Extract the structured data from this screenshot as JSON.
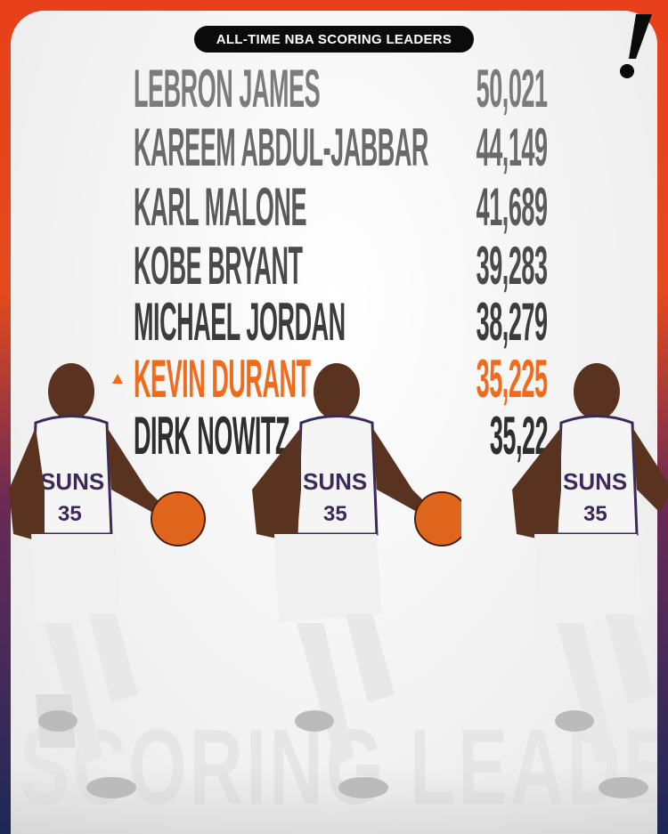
{
  "header": {
    "title": "ALL-TIME NBA  SCORING LEADERS",
    "watermark": "SCORING LEADERS"
  },
  "colors": {
    "highlight": "#f26a1b",
    "text_top": "#7a7a7a",
    "text_bottom": "#2e2e2e",
    "pill": "#0b0b0b",
    "border_top": "#e8401a",
    "border_bottom": "#1e2a5a"
  },
  "leaders": [
    {
      "name": "LEBRON JAMES",
      "points": "50,021"
    },
    {
      "name": "KAREEM ABDUL-JABBAR",
      "points": "44,149"
    },
    {
      "name": "KARL MALONE",
      "points": "41,689"
    },
    {
      "name": "KOBE BRYANT",
      "points": "39,283"
    },
    {
      "name": "MICHAEL JORDAN",
      "points": "38,279"
    },
    {
      "name": "KEVIN DURANT",
      "points": "35,225",
      "highlight": true,
      "trend": "up"
    },
    {
      "name": "DIRK NOWITZ",
      "points": "35,22"
    }
  ],
  "icons": {
    "logo": "exclamation-mark-logo",
    "trend": "up-triangle-icon"
  }
}
